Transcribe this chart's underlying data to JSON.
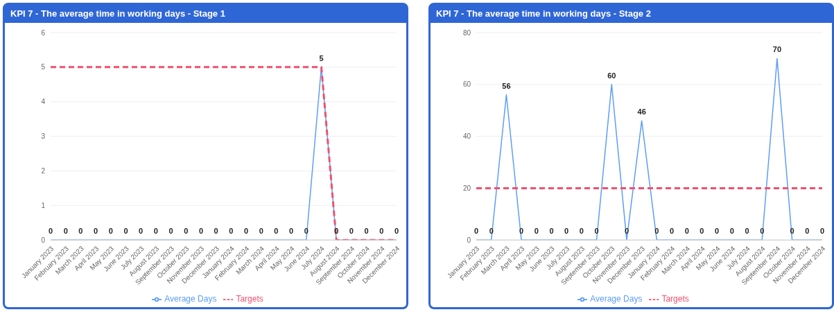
{
  "chart_data": [
    {
      "type": "line",
      "title": "KPI 7 - The average time in working days - Stage 1",
      "categories": [
        "January 2023",
        "February 2023",
        "March 2023",
        "April 2023",
        "May 2023",
        "June 2023",
        "July 2023",
        "August 2023",
        "September 2023",
        "October 2023",
        "November 2023",
        "December 2023",
        "January 2024",
        "February 2024",
        "March 2024",
        "April 2024",
        "May 2024",
        "June 2024",
        "July 2024",
        "August 2024",
        "September 2024",
        "October 2024",
        "November 2024",
        "December 2024"
      ],
      "series": [
        {
          "name": "Average Days",
          "color": "#5c9df5",
          "line_style": "solid",
          "values": [
            0,
            0,
            0,
            0,
            0,
            0,
            0,
            0,
            0,
            0,
            0,
            0,
            0,
            0,
            0,
            0,
            0,
            0,
            5,
            0,
            0,
            0,
            0,
            0
          ],
          "value_labels": [
            "0",
            "0",
            "0",
            "0",
            "0",
            "0",
            "0",
            "0",
            "0",
            "0",
            "0",
            "0",
            "0",
            "0",
            "0",
            "0",
            "0",
            "0",
            "5",
            "0",
            "0",
            "0",
            "0",
            "0"
          ]
        },
        {
          "name": "Targets",
          "color": "#f0506e",
          "line_style": "dashed",
          "values": [
            5,
            5,
            5,
            5,
            5,
            5,
            5,
            5,
            5,
            5,
            5,
            5,
            5,
            5,
            5,
            5,
            5,
            5,
            5,
            0,
            0,
            0,
            0,
            0
          ]
        }
      ],
      "ylim": [
        0,
        6
      ],
      "yticks": [
        0,
        1,
        2,
        3,
        4,
        5,
        6
      ],
      "grid": "y",
      "legend": "bottom",
      "marker": "none"
    },
    {
      "type": "line",
      "title": "KPI 7 - The average time in working days - Stage 2",
      "categories": [
        "January 2023",
        "February 2023",
        "March 2023",
        "April 2023",
        "May 2023",
        "June 2023",
        "July 2023",
        "August 2023",
        "September 2023",
        "October 2023",
        "November 2023",
        "December 2023",
        "January 2024",
        "February 2024",
        "March 2024",
        "April 2024",
        "May 2024",
        "June 2024",
        "July 2024",
        "August 2024",
        "September 2024",
        "October 2024",
        "November 2024",
        "December 2024"
      ],
      "series": [
        {
          "name": "Average Days",
          "color": "#5c9df5",
          "line_style": "solid",
          "values": [
            0,
            0,
            56,
            0,
            0,
            0,
            0,
            0,
            0,
            60,
            0,
            46,
            0,
            0,
            0,
            0,
            0,
            0,
            0,
            0,
            70,
            0,
            0,
            0
          ],
          "value_labels": [
            "0",
            "0",
            "56",
            "0",
            "0",
            "0",
            "0",
            "0",
            "0",
            "60",
            "0",
            "46",
            "0",
            "0",
            "0",
            "0",
            "0",
            "0",
            "0",
            "0",
            "70",
            "0",
            "0",
            "0"
          ]
        },
        {
          "name": "Targets",
          "color": "#f0506e",
          "line_style": "dashed",
          "values": [
            20,
            20,
            20,
            20,
            20,
            20,
            20,
            20,
            20,
            20,
            20,
            20,
            20,
            20,
            20,
            20,
            20,
            20,
            20,
            20,
            20,
            20,
            20,
            20
          ]
        }
      ],
      "ylim": [
        0,
        80
      ],
      "yticks": [
        0,
        20,
        40,
        60,
        80
      ],
      "grid": "y",
      "legend": "bottom",
      "marker": "none"
    }
  ]
}
